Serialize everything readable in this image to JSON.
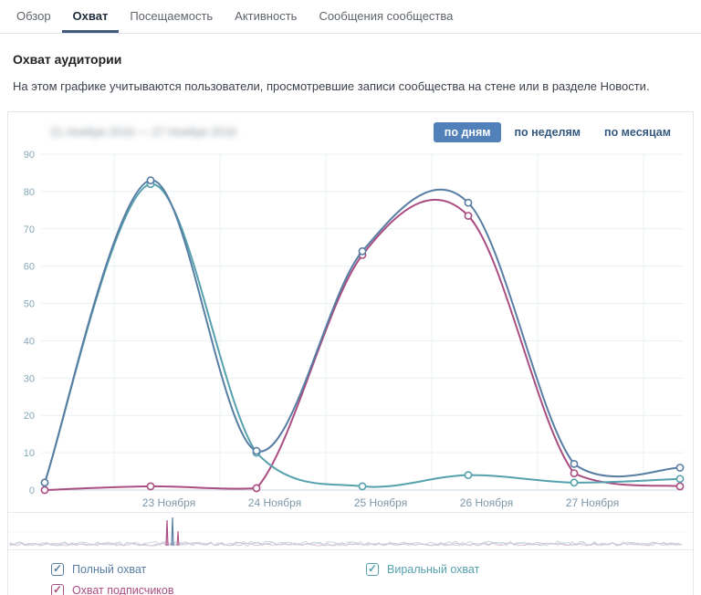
{
  "tabs": [
    {
      "label": "Обзор",
      "active": false
    },
    {
      "label": "Охват",
      "active": true
    },
    {
      "label": "Посещаемость",
      "active": false
    },
    {
      "label": "Активность",
      "active": false
    },
    {
      "label": "Сообщения сообщества",
      "active": false
    }
  ],
  "section": {
    "title": "Охват аудитории",
    "description": "На этом графике учитываются пользователи, просмотревшие записи сообщества на стене или в разделе Новости."
  },
  "chart_header": {
    "date_range_text": "21 Ноября 2016 — 27 Ноября 2016",
    "date_range_blurred": true,
    "period_buttons": [
      {
        "label": "по дням",
        "active": true
      },
      {
        "label": "по неделям",
        "active": false
      },
      {
        "label": "по месяцам",
        "active": false
      }
    ]
  },
  "chart_data": {
    "type": "line",
    "smoothing": "spline",
    "grid": true,
    "ylim": [
      0,
      90
    ],
    "y_tick_step": 10,
    "x_labels": [
      "23 Ноября",
      "24 Ноября",
      "25 Ноября",
      "26 Ноября",
      "27 Ноября"
    ],
    "x_label_point_indices": [
      1,
      2,
      3,
      4,
      5
    ],
    "series": [
      {
        "name": "Полный охват",
        "color": "#587ea3",
        "values": [
          2,
          83,
          10.5,
          64,
          77,
          7,
          6
        ]
      },
      {
        "name": "Виральный охват",
        "color": "#55a1ad",
        "values": [
          2,
          82,
          10,
          1,
          4,
          2,
          3
        ]
      },
      {
        "name": "Охват подписчиков",
        "color": "#aa4d80",
        "values": [
          0,
          1,
          0.5,
          63,
          73.5,
          4.5,
          1
        ]
      }
    ],
    "legend_position": "bottom"
  },
  "minimap": {
    "spike_x": 178
  },
  "legend": {
    "items": [
      {
        "label": "Полный охват",
        "color": "#587ea3",
        "checked": true
      },
      {
        "label": "Виральный охват",
        "color": "#55a1ad",
        "checked": true
      },
      {
        "label": "Охват подписчиков",
        "color": "#aa4d80",
        "checked": true
      }
    ]
  }
}
